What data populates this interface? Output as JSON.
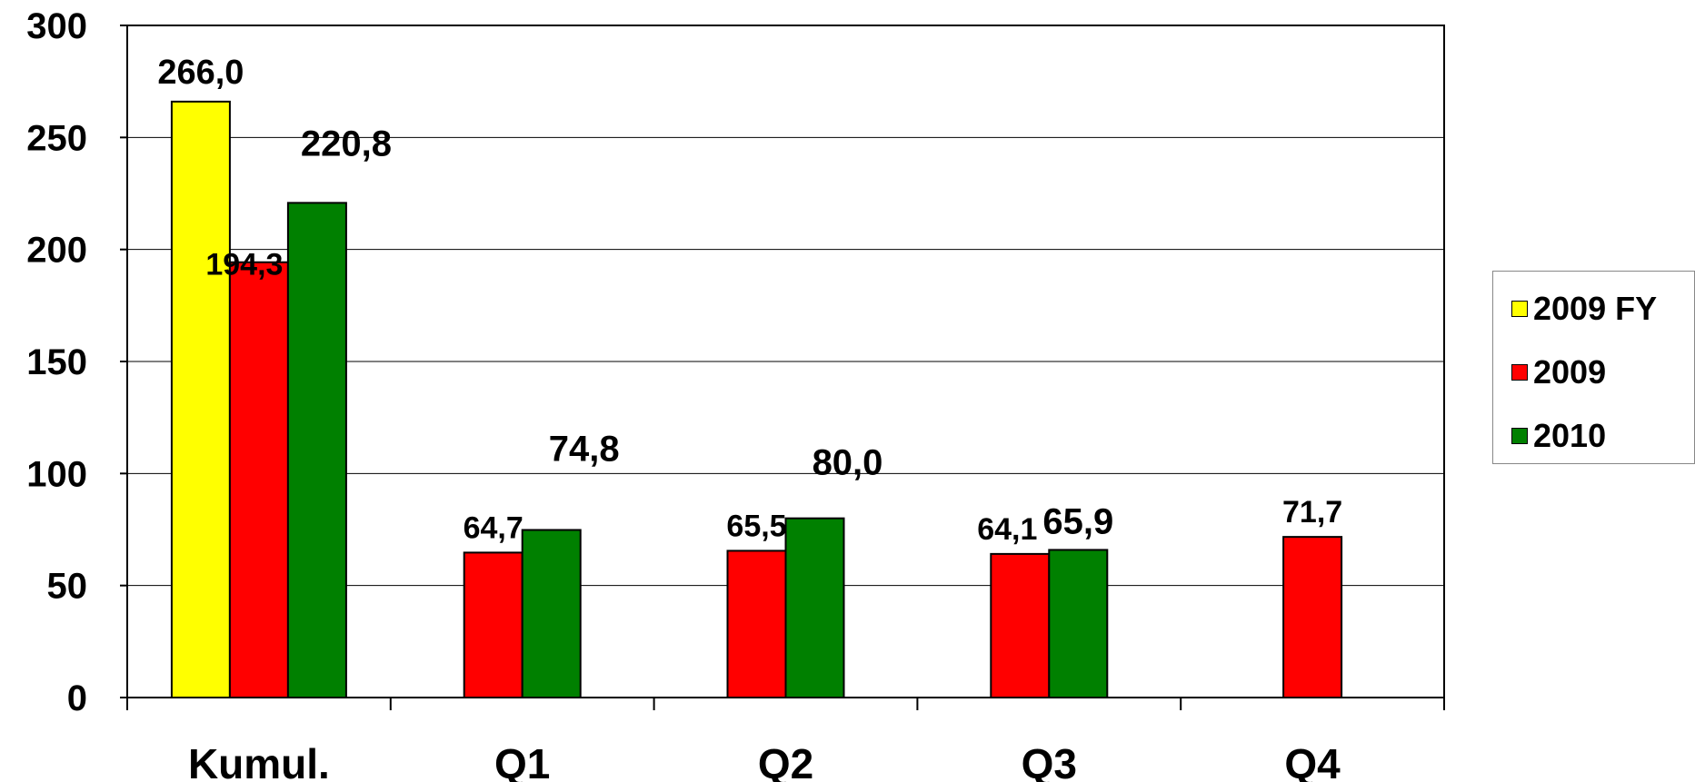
{
  "chart_data": {
    "type": "bar",
    "categories": [
      "Kumul.",
      "Q1",
      "Q2",
      "Q3",
      "Q4"
    ],
    "series": [
      {
        "name": "2009 FY",
        "color": "#ffff00",
        "values": [
          266.0,
          null,
          null,
          null,
          null
        ],
        "labels": [
          "266,0",
          null,
          null,
          null,
          null
        ]
      },
      {
        "name": "2009",
        "color": "#ff0000",
        "values": [
          194.3,
          64.7,
          65.5,
          64.1,
          71.7
        ],
        "labels": [
          "194,3",
          "64,7",
          "65,5",
          "64,1",
          "71,7"
        ]
      },
      {
        "name": "2010",
        "color": "#008000",
        "values": [
          220.8,
          74.8,
          80.0,
          65.9,
          null
        ],
        "labels": [
          "220,8",
          "74,8",
          "80,0",
          "65,9",
          null
        ]
      }
    ],
    "ylim": [
      0,
      300
    ],
    "yticks": [
      "0",
      "50",
      "100",
      "150",
      "200",
      "250",
      "300"
    ],
    "grid": true,
    "legend_position": "right",
    "title": "",
    "xlabel": "",
    "ylabel": ""
  }
}
